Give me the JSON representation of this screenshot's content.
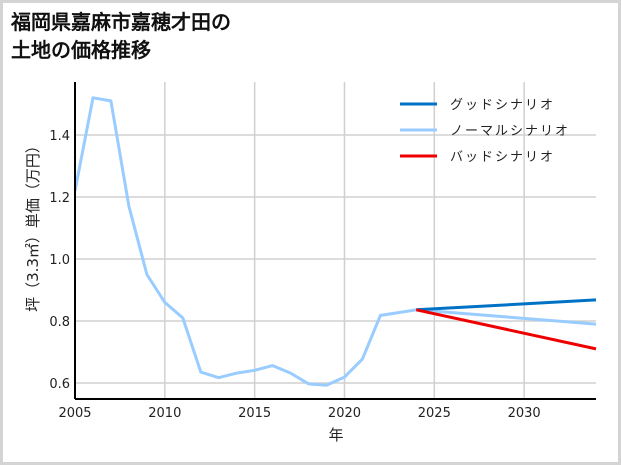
{
  "title": "福岡県嘉麻市嘉穂才田の\n土地の価格推移",
  "chart_data": {
    "type": "line",
    "title": "福岡県嘉麻市嘉穂才田の土地の価格推移",
    "xlabel": "年",
    "ylabel": "坪（3.3㎡）単価（万円）",
    "xlim": [
      2005,
      2034
    ],
    "ylim": [
      0.55,
      1.57
    ],
    "xticks": [
      2005,
      2010,
      2015,
      2020,
      2025,
      2030
    ],
    "yticks": [
      0.6,
      0.8,
      1.0,
      1.2,
      1.4
    ],
    "ytick_labels": [
      "0.6",
      "0.8",
      "1.0",
      "1.2",
      "1.4"
    ],
    "grid": true,
    "legend_position": "upper right",
    "series": [
      {
        "name": "グッドシナリオ",
        "color": "#0072c6",
        "x": [
          2024,
          2034
        ],
        "values": [
          0.836,
          0.868
        ]
      },
      {
        "name": "ノーマルシナリオ",
        "color": "#99ccff",
        "x": [
          2005,
          2006,
          2007,
          2008,
          2009,
          2010,
          2011,
          2012,
          2013,
          2014,
          2015,
          2016,
          2017,
          2018,
          2019,
          2020,
          2021,
          2022,
          2023,
          2024,
          2034
        ],
        "values": [
          1.22,
          1.52,
          1.51,
          1.17,
          0.95,
          0.86,
          0.81,
          0.635,
          0.617,
          0.632,
          0.641,
          0.656,
          0.632,
          0.597,
          0.593,
          0.619,
          0.677,
          0.818,
          0.827,
          0.836,
          0.79
        ]
      },
      {
        "name": "バッドシナリオ",
        "color": "#ee0000",
        "x": [
          2024,
          2034
        ],
        "values": [
          0.836,
          0.71
        ]
      }
    ]
  }
}
